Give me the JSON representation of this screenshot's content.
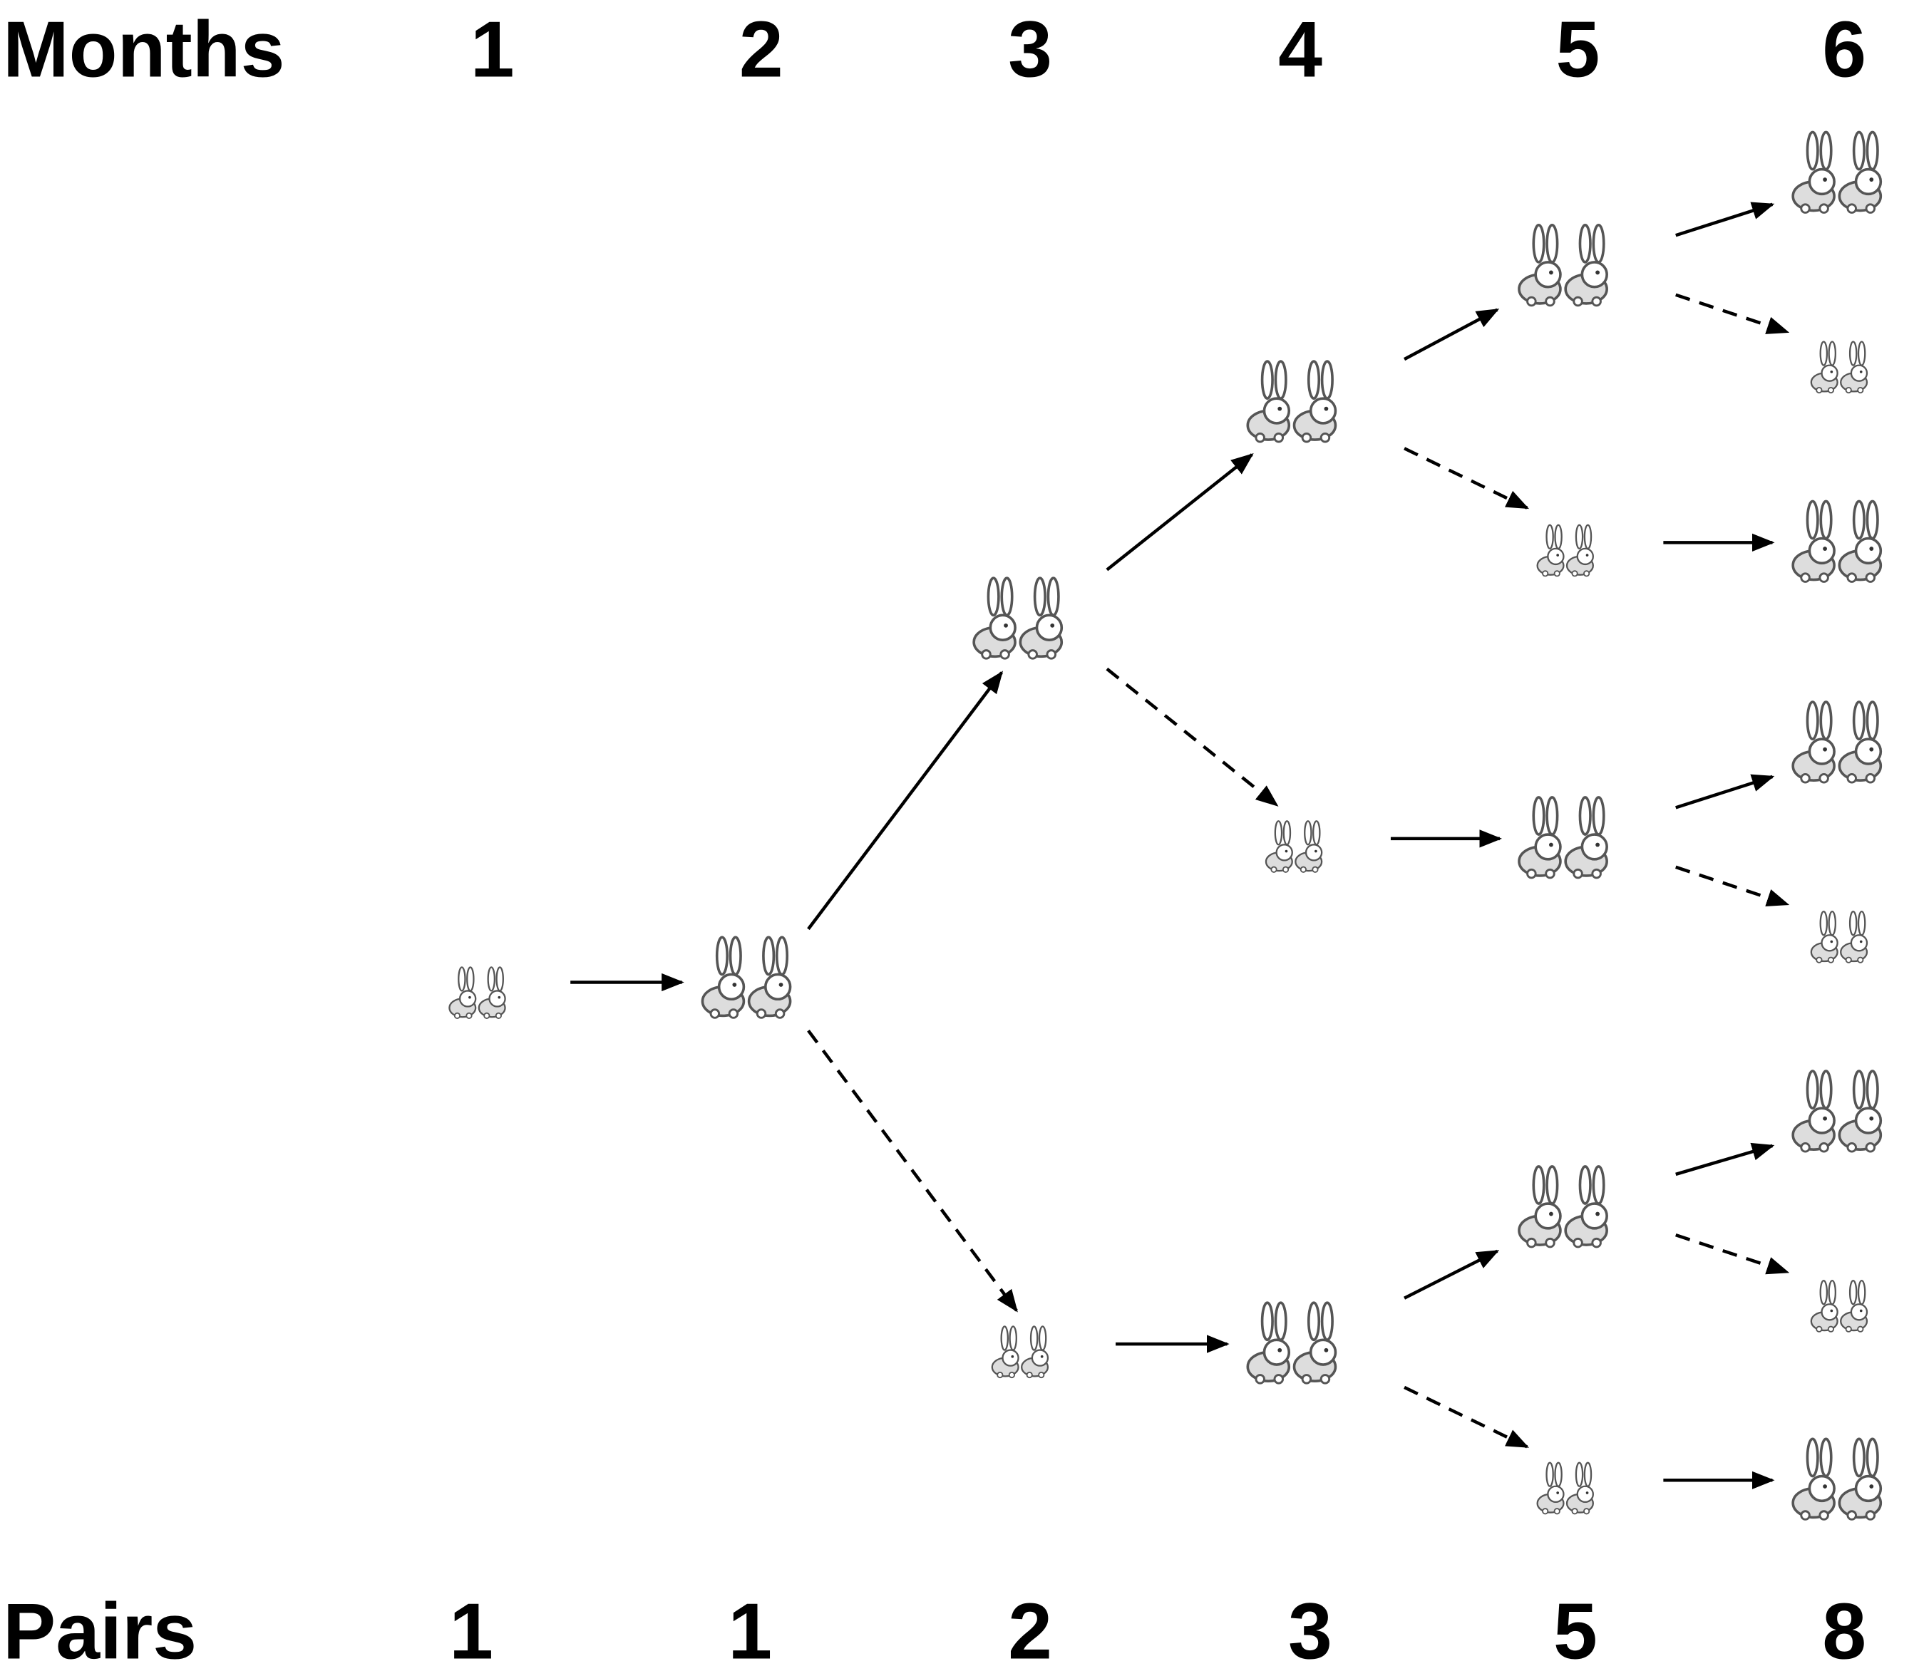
{
  "header": {
    "label": "Months",
    "months": [
      1,
      2,
      3,
      4,
      5,
      6
    ]
  },
  "footer": {
    "label": "Pairs",
    "pairs": [
      1,
      1,
      2,
      3,
      5,
      8
    ]
  }
}
